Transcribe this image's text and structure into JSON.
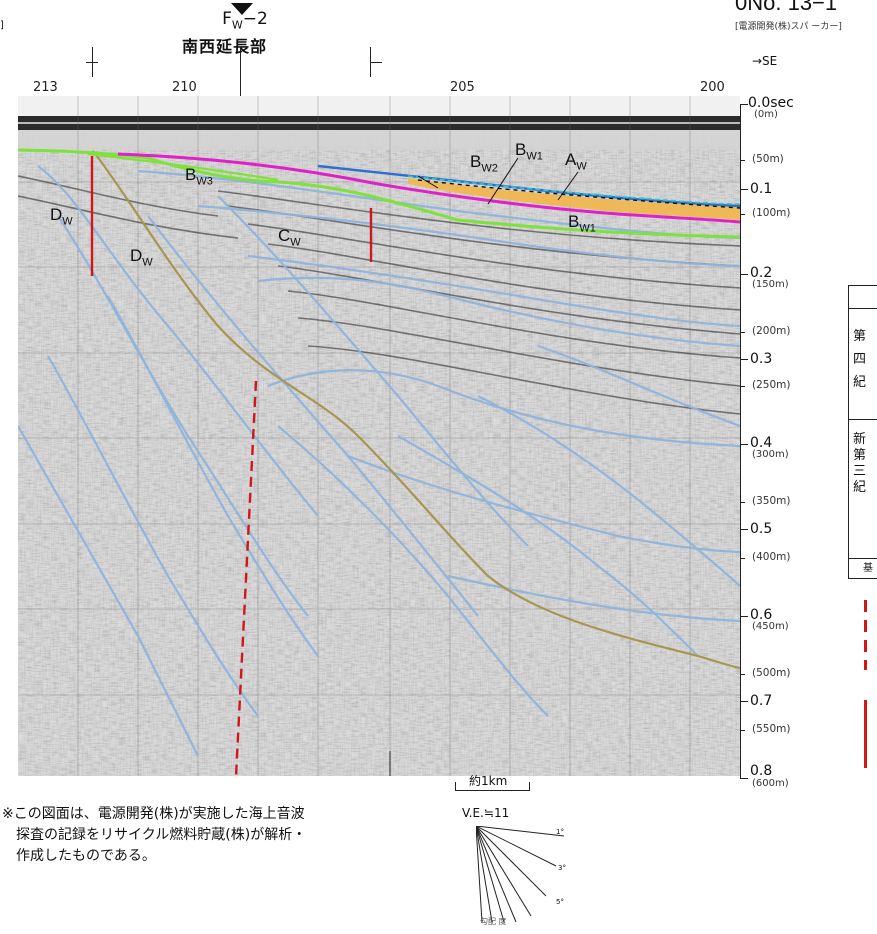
{
  "header": {
    "fault_name": "F",
    "fault_sub": "W",
    "fault_suffix": "−2",
    "fault_desc": "南西延長部",
    "record_no": "0No. 13−1",
    "record_source": "[電源開発(株)スパ ーカー]",
    "corner_mark": "]",
    "direction": "→SE"
  },
  "shotpoints": [
    "213",
    "210",
    "205",
    "200"
  ],
  "time_axis": [
    {
      "main": "0.0sec",
      "sub": "(0m)"
    },
    {
      "depth": "(50m)"
    },
    {
      "main": "0.1"
    },
    {
      "depth": "(100m)"
    },
    {
      "main": "0.2",
      "sub": "(150m)"
    },
    {
      "depth": "(200m)"
    },
    {
      "main": "0.3"
    },
    {
      "depth": "(250m)"
    },
    {
      "main": "0.4",
      "sub": "(300m)"
    },
    {
      "depth": "(350m)"
    },
    {
      "main": "0.5"
    },
    {
      "depth": "(400m)"
    },
    {
      "main": "0.6",
      "sub": "(450m)"
    },
    {
      "depth": "(500m)"
    },
    {
      "main": "0.7"
    },
    {
      "depth": "(550m)"
    },
    {
      "main": "0.8",
      "sub": "(600m)"
    }
  ],
  "units": {
    "aw": {
      "base": "A",
      "sub": "W"
    },
    "bw1_top": {
      "base": "B",
      "sub": "W1"
    },
    "bw2": {
      "base": "B",
      "sub": "W2"
    },
    "bw3": {
      "base": "B",
      "sub": "W3"
    },
    "bw1_low": {
      "base": "B",
      "sub": "W1"
    },
    "cw": {
      "base": "C",
      "sub": "W"
    },
    "dw_left": {
      "base": "D",
      "sub": "W"
    },
    "dw_mid": {
      "base": "D",
      "sub": "W"
    }
  },
  "scale": {
    "bar_label": "約1km",
    "ve": "V.E.≒11"
  },
  "slope_labels": [
    "1°",
    "3°",
    "5°"
  ],
  "slope_caption": "勾配 度",
  "note": {
    "line1": "※この図面は、電源開発(株)が実施した海上音波",
    "line2": "探査の記録をリサイクル燃料貯蔵(株)が解析・",
    "line3": "作成したものである。"
  },
  "legend": {
    "q1": "第",
    "q2": "四",
    "q3": "紀",
    "n1": "新",
    "n2": "第",
    "n3": "三",
    "n4": "紀",
    "n5": "基"
  },
  "colors": {
    "aw_line": "#2a6fd1",
    "bw1_line": "#e020c8",
    "bw2_fill": "#f2b64a",
    "cw_line": "#7ee23a",
    "horizon": "#8fb4dc",
    "basement": "#a89550",
    "fault_solid": "#d01818",
    "fault_dashed": "#d01818"
  }
}
